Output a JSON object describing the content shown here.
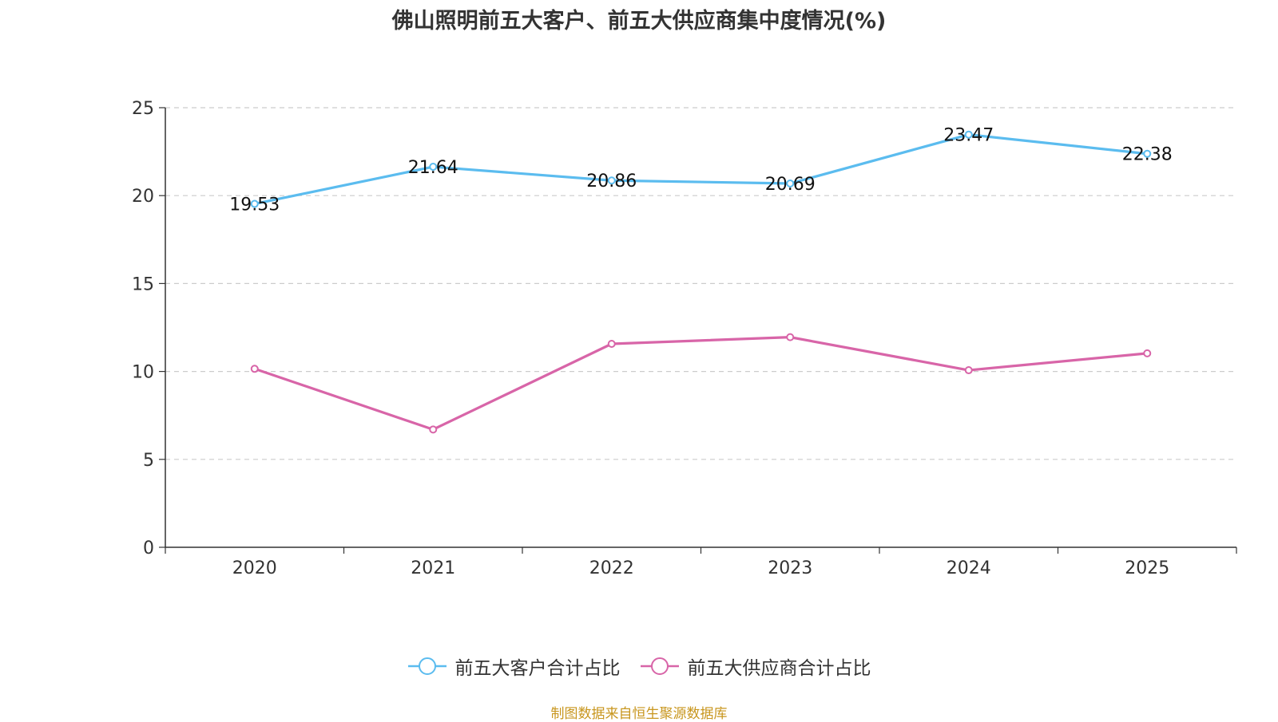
{
  "title": "佛山照明前五大客户、前五大供应商集中度情况(%)",
  "source": "制图数据来自恒生聚源数据库",
  "colors": {
    "customers": "#5bbcef",
    "suppliers": "#d865a8"
  },
  "chart_data": {
    "type": "line",
    "title": "佛山照明前五大客户、前五大供应商集中度情况(%)",
    "xlabel": "",
    "ylabel": "",
    "categories": [
      "2020",
      "2021",
      "2022",
      "2023",
      "2024",
      "2025"
    ],
    "ylim": [
      0,
      25
    ],
    "yticks": [
      "0",
      "5",
      "10",
      "15",
      "20",
      "25"
    ],
    "grid": true,
    "legend_position": "bottom",
    "series": [
      {
        "name": "前五大客户合计占比",
        "values": [
          19.53,
          21.64,
          20.86,
          20.69,
          23.47,
          22.38
        ],
        "labels": [
          "19.53",
          "21.64",
          "20.86",
          "20.69",
          "23.47",
          "22.38"
        ]
      },
      {
        "name": "前五大供应商合计占比",
        "values": [
          10.15,
          6.7,
          11.57,
          11.95,
          10.07,
          11.03
        ]
      }
    ]
  }
}
